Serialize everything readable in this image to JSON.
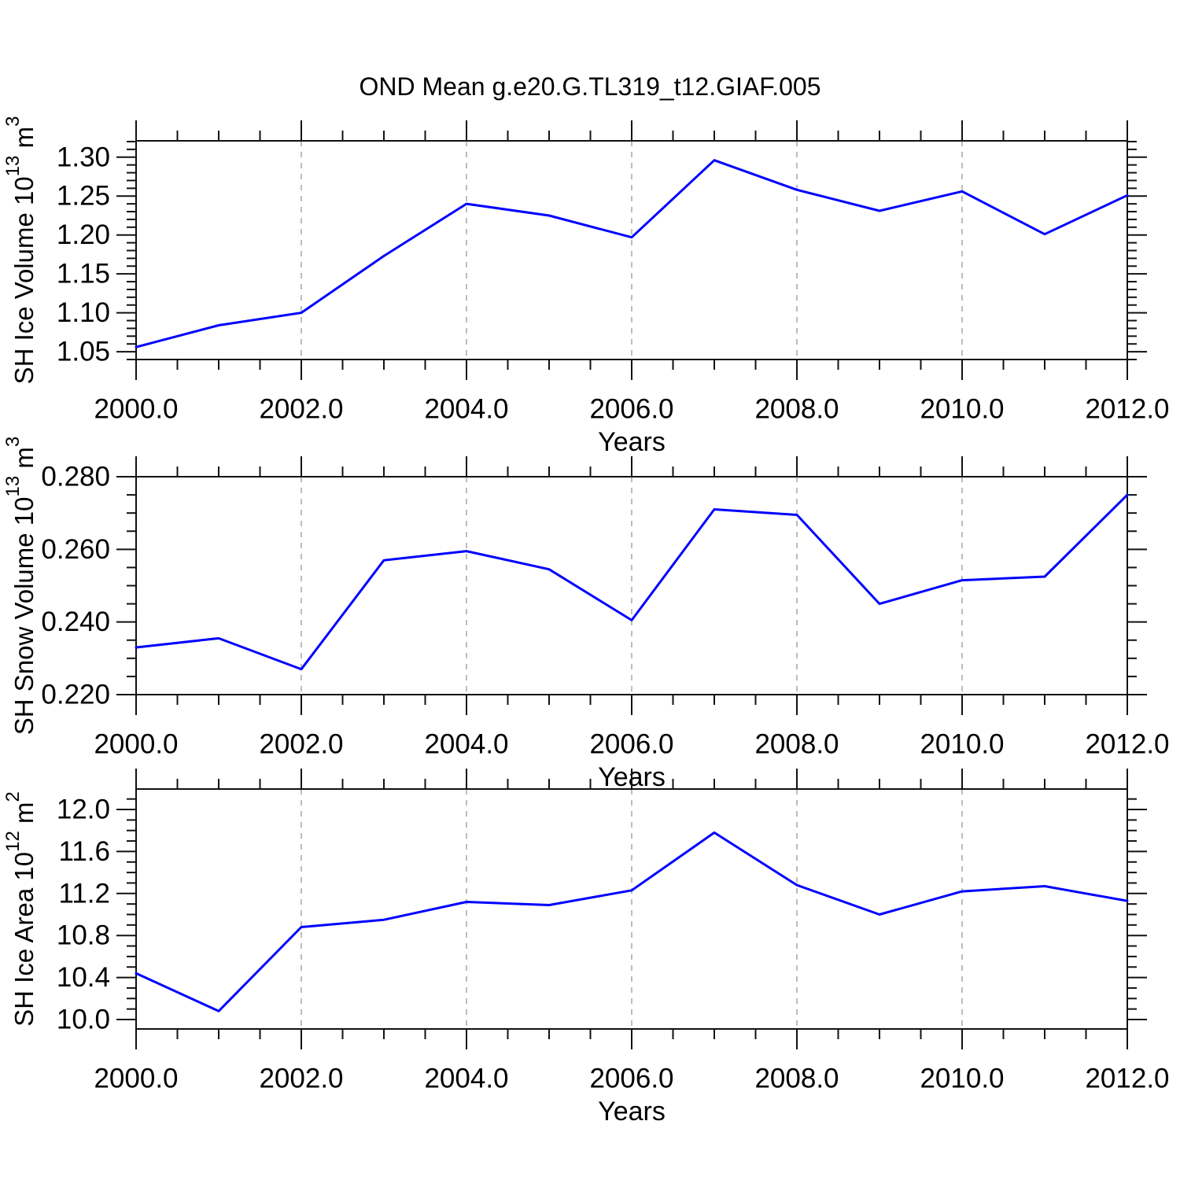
{
  "title": "OND Mean g.e20.G.TL319_t12.GIAF.005",
  "colors": {
    "line": "#0000ff",
    "axis": "#111111",
    "grid": "#999999",
    "text": "#000000",
    "background": "#ffffff"
  },
  "x_axis": {
    "label": "Years",
    "min": 2000,
    "max": 2012,
    "major_ticks": [
      2000,
      2002,
      2004,
      2006,
      2008,
      2010,
      2012
    ],
    "major_labels": [
      "2000.0",
      "2002.0",
      "2004.0",
      "2006.0",
      "2008.0",
      "2010.0",
      "2012.0"
    ],
    "minor_step": 0.5,
    "gridlines": [
      2002,
      2004,
      2006,
      2008,
      2010
    ]
  },
  "chart_data": [
    {
      "type": "line",
      "name": "sh-ice-volume",
      "ylabel": "SH Ice Volume 10^13 m^3",
      "ylabel_parts": [
        "SH Ice Volume 10",
        {
          "sup": "13"
        },
        " m",
        {
          "sup": "3"
        }
      ],
      "xlabel": "Years",
      "ylim": [
        1.04,
        1.321
      ],
      "major_ticks": [
        1.05,
        1.1,
        1.15,
        1.2,
        1.25,
        1.3
      ],
      "major_labels": [
        "1.05",
        "1.10",
        "1.15",
        "1.20",
        "1.25",
        "1.30"
      ],
      "minor_step": 0.01,
      "grid": true,
      "legend": "none",
      "x": [
        2000,
        2001,
        2002,
        2003,
        2004,
        2005,
        2006,
        2007,
        2008,
        2009,
        2010,
        2011,
        2012
      ],
      "values": [
        1.056,
        1.084,
        1.1,
        1.173,
        1.24,
        1.225,
        1.197,
        1.296,
        1.258,
        1.231,
        1.256,
        1.201,
        1.251
      ]
    },
    {
      "type": "line",
      "name": "sh-snow-volume",
      "ylabel": "SH Snow Volume 10^13 m^3",
      "ylabel_parts": [
        "SH Snow Volume 10",
        {
          "sup": "13"
        },
        " m",
        {
          "sup": "3"
        }
      ],
      "xlabel": "Years",
      "ylim": [
        0.22,
        0.28
      ],
      "major_ticks": [
        0.22,
        0.24,
        0.26,
        0.28
      ],
      "major_labels": [
        "0.220",
        "0.240",
        "0.260",
        "0.280"
      ],
      "minor_step": 0.005,
      "grid": true,
      "legend": "none",
      "x": [
        2000,
        2001,
        2002,
        2003,
        2004,
        2005,
        2006,
        2007,
        2008,
        2009,
        2010,
        2011,
        2012
      ],
      "values": [
        0.233,
        0.2355,
        0.227,
        0.257,
        0.2595,
        0.2545,
        0.2405,
        0.271,
        0.2695,
        0.245,
        0.2515,
        0.2525,
        0.275
      ]
    },
    {
      "type": "line",
      "name": "sh-ice-area",
      "ylabel": "SH Ice Area 10^12 m^2",
      "ylabel_parts": [
        "SH Ice Area 10",
        {
          "sup": "12"
        },
        " m",
        {
          "sup": "2"
        }
      ],
      "xlabel": "Years",
      "ylim": [
        9.91,
        12.195
      ],
      "major_ticks": [
        10.0,
        10.4,
        10.8,
        11.2,
        11.6,
        12.0
      ],
      "major_labels": [
        "10.0",
        "10.4",
        "10.8",
        "11.2",
        "11.6",
        "12.0"
      ],
      "minor_step": 0.1,
      "grid": true,
      "legend": "none",
      "x": [
        2000,
        2001,
        2002,
        2003,
        2004,
        2005,
        2006,
        2007,
        2008,
        2009,
        2010,
        2011,
        2012
      ],
      "values": [
        10.44,
        10.08,
        10.88,
        10.95,
        11.12,
        11.09,
        11.23,
        11.78,
        11.28,
        11.0,
        11.22,
        11.27,
        11.13
      ]
    }
  ]
}
